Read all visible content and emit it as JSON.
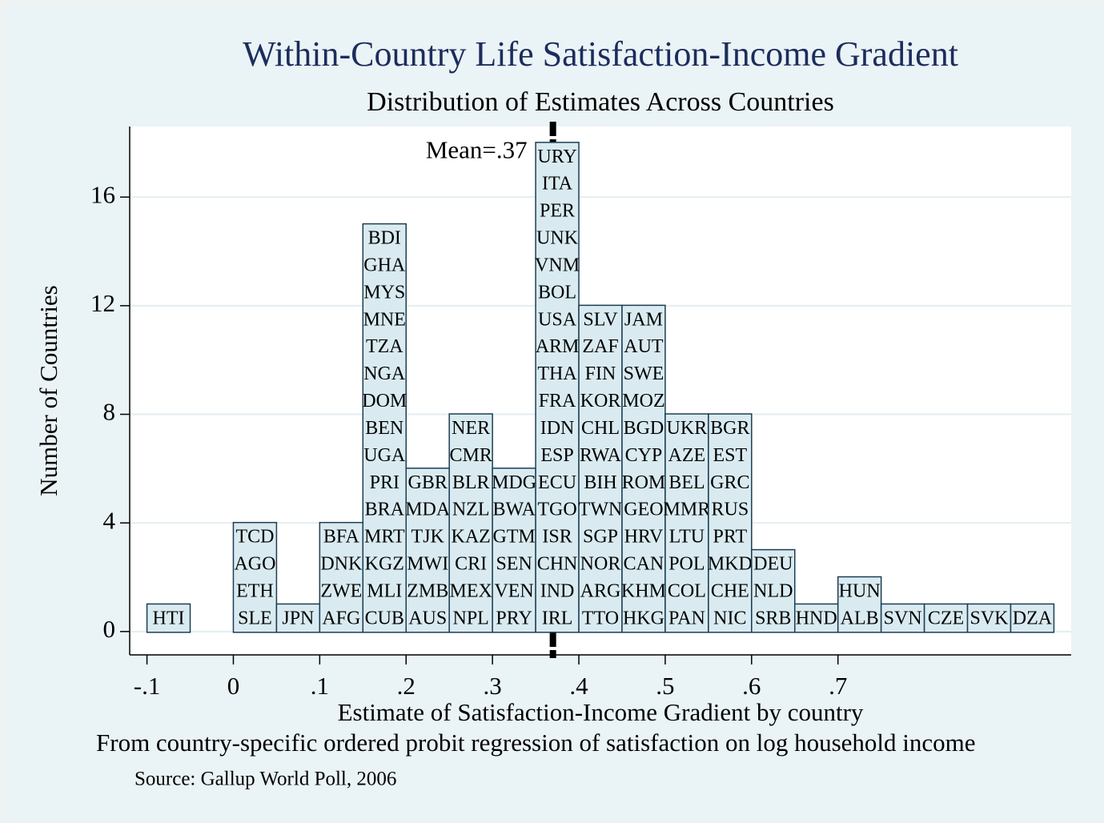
{
  "chart_data": {
    "type": "histogram",
    "title": "Within-Country Life Satisfaction-Income Gradient",
    "subtitle": "Distribution of Estimates Across Countries",
    "x_label": "Estimate of Satisfaction-Income Gradient by country",
    "note": "From country-specific ordered probit regression of satisfaction on log household income",
    "source": "Source: Gallup World Poll, 2006",
    "y_label": "Number of Countries",
    "bins": [
      -0.1,
      -0.05,
      0,
      0.05,
      0.1,
      0.15,
      0.2,
      0.25,
      0.3,
      0.35,
      0.4,
      0.45,
      0.5,
      0.55,
      0.6,
      0.65,
      0.7,
      0.75,
      0.8,
      0.85,
      0.9,
      0.95
    ],
    "counts": [
      1,
      0,
      4,
      1,
      4,
      15,
      6,
      8,
      6,
      18,
      12,
      12,
      8,
      8,
      3,
      1,
      2,
      1,
      1,
      1,
      1
    ],
    "bar_labels": [
      [
        "HTI"
      ],
      [],
      [
        "TCD",
        "AGO",
        "ETH",
        "SLE"
      ],
      [
        "JPN"
      ],
      [
        "BFA",
        "DNK",
        "ZWE",
        "AFG"
      ],
      [
        "BDI",
        "GHA",
        "MYS",
        "MNE",
        "TZA",
        "NGA",
        "DOM",
        "BEN",
        "UGA",
        "PRI",
        "BRA",
        "MRT",
        "KGZ",
        "MLI",
        "CUB"
      ],
      [
        "GBR",
        "MDA",
        "TJK",
        "MWI",
        "ZMB",
        "AUS"
      ],
      [
        "NER",
        "CMR",
        "BLR",
        "NZL",
        "KAZ",
        "CRI",
        "MEX",
        "NPL"
      ],
      [
        "MDG",
        "BWA",
        "GTM",
        "SEN",
        "VEN",
        "PRY"
      ],
      [
        "URY",
        "ITA",
        "PER",
        "UNK",
        "VNM",
        "BOL",
        "USA",
        "ARM",
        "THA",
        "FRA",
        "IDN",
        "ESP",
        "ECU",
        "TGO",
        "ISR",
        "CHN",
        "IND",
        "IRL"
      ],
      [
        "SLV",
        "ZAF",
        "FIN",
        "KOR",
        "CHL",
        "RWA",
        "BIH",
        "TWN",
        "SGP",
        "NOR",
        "ARG",
        "TTO"
      ],
      [
        "JAM",
        "AUT",
        "SWE",
        "MOZ",
        "BGD",
        "CYP",
        "ROM",
        "GEO",
        "HRV",
        "CAN",
        "KHM",
        "HKG"
      ],
      [
        "UKR",
        "AZE",
        "BEL",
        "MMR",
        "LTU",
        "POL",
        "COL",
        "PAN"
      ],
      [
        "BGR",
        "EST",
        "GRC",
        "RUS",
        "PRT",
        "MKD",
        "CHE",
        "NIC"
      ],
      [
        "DEU",
        "NLD",
        "SRB"
      ],
      [
        "HND"
      ],
      [
        "HUN",
        "ALB"
      ],
      [
        "SVN"
      ],
      [
        "CZE"
      ],
      [
        "SVK"
      ],
      [
        "DZA"
      ]
    ],
    "mean": {
      "value": 0.37,
      "label": "Mean=.37"
    },
    "xlim": [
      -0.12,
      0.97
    ],
    "xticks": [
      {
        "value": -0.1,
        "label": "-.1"
      },
      0,
      {
        "value": 0.1,
        "label": ".1"
      },
      {
        "value": 0.2,
        "label": ".2"
      },
      {
        "value": 0.3,
        "label": ".3"
      },
      {
        "value": 0.4,
        "label": ".4"
      },
      {
        "value": 0.5,
        "label": ".5"
      },
      {
        "value": 0.6,
        "label": ".6"
      },
      {
        "value": 0.7,
        "label": ".7"
      }
    ],
    "ylim": [
      -0.86,
      18.6
    ],
    "yticks": [
      0,
      4,
      8,
      12,
      16
    ],
    "grid": true,
    "color": "#d9ebf1"
  }
}
